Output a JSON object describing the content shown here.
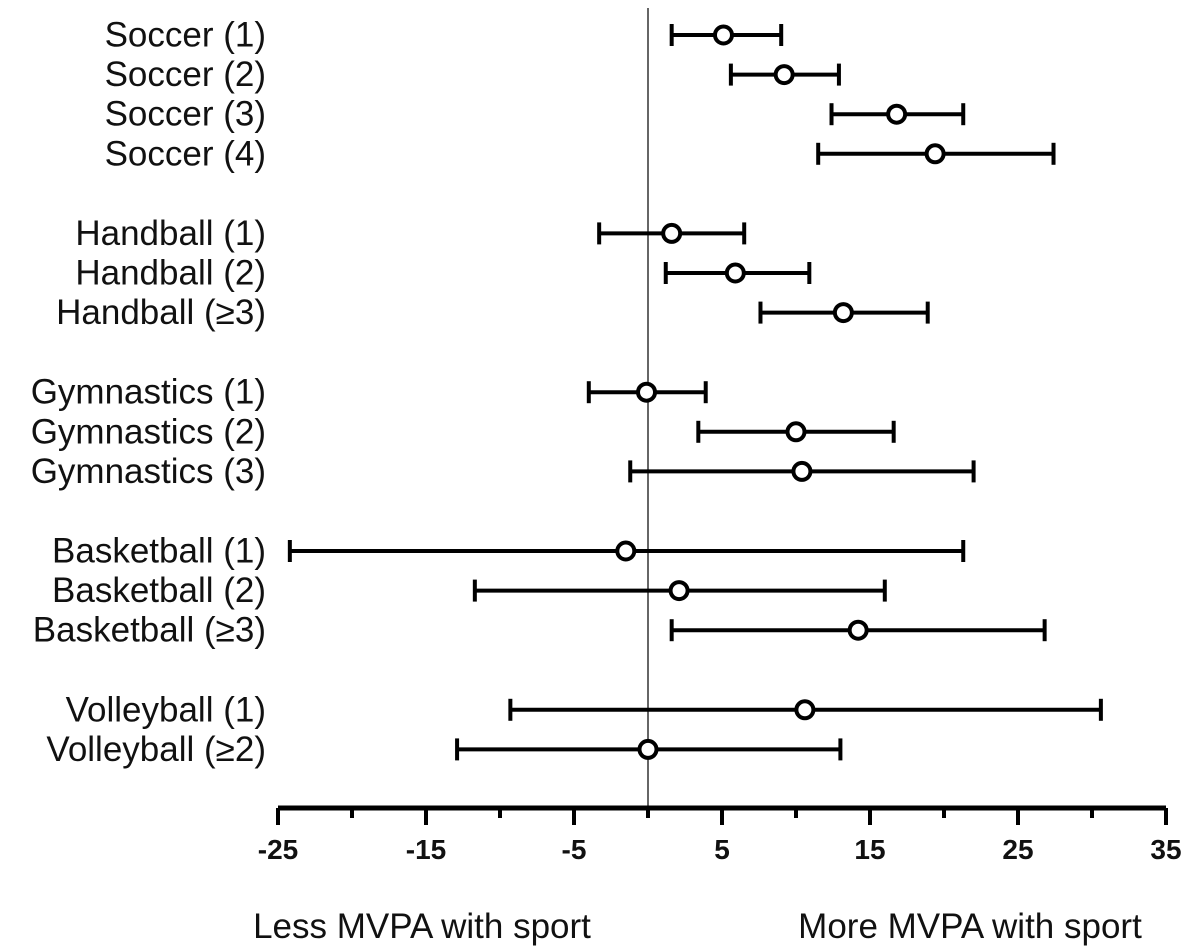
{
  "chart_data": {
    "type": "forest",
    "xlim": [
      -25,
      35
    ],
    "reference_x": 0,
    "major_ticks": [
      -25,
      -15,
      -5,
      5,
      15,
      25,
      35
    ],
    "tick_labels": [
      "-25",
      "-15",
      "-5",
      "5",
      "15",
      "25",
      "35"
    ],
    "minor_ticks": [
      -20,
      -10,
      0,
      10,
      20,
      30
    ],
    "footer_left": "Less MVPA with sport",
    "footer_right": "More MVPA with sport",
    "groups": [
      {
        "rows": [
          {
            "label": "Soccer (1)",
            "estimate": 5.1,
            "lower": 1.6,
            "upper": 9.0
          },
          {
            "label": "Soccer (2)",
            "estimate": 9.2,
            "lower": 5.6,
            "upper": 12.9
          },
          {
            "label": "Soccer (3)",
            "estimate": 16.8,
            "lower": 12.4,
            "upper": 21.3
          },
          {
            "label": "Soccer (4)",
            "estimate": 19.4,
            "lower": 11.5,
            "upper": 27.4
          }
        ]
      },
      {
        "rows": [
          {
            "label": "Handball (1)",
            "estimate": 1.6,
            "lower": -3.3,
            "upper": 6.5
          },
          {
            "label": "Handball (2)",
            "estimate": 5.9,
            "lower": 1.2,
            "upper": 10.9
          },
          {
            "label": "Handball (≥3)",
            "estimate": 13.2,
            "lower": 7.6,
            "upper": 18.9
          }
        ]
      },
      {
        "rows": [
          {
            "label": "Gymnastics (1)",
            "estimate": -0.1,
            "lower": -4.0,
            "upper": 3.9
          },
          {
            "label": "Gymnastics (2)",
            "estimate": 10.0,
            "lower": 3.4,
            "upper": 16.6
          },
          {
            "label": "Gymnastics (3)",
            "estimate": 10.4,
            "lower": -1.2,
            "upper": 22.0
          }
        ]
      },
      {
        "rows": [
          {
            "label": "Basketball (1)",
            "estimate": -1.5,
            "lower": -24.2,
            "upper": 21.3
          },
          {
            "label": "Basketball (2)",
            "estimate": 2.1,
            "lower": -11.7,
            "upper": 16.0
          },
          {
            "label": "Basketball (≥3)",
            "estimate": 14.2,
            "lower": 1.6,
            "upper": 26.8
          }
        ]
      },
      {
        "rows": [
          {
            "label": "Volleyball (1)",
            "estimate": 10.6,
            "lower": -9.3,
            "upper": 30.6
          },
          {
            "label": "Volleyball (≥2)",
            "estimate": 0.0,
            "lower": -12.9,
            "upper": 13.0
          }
        ]
      }
    ]
  }
}
